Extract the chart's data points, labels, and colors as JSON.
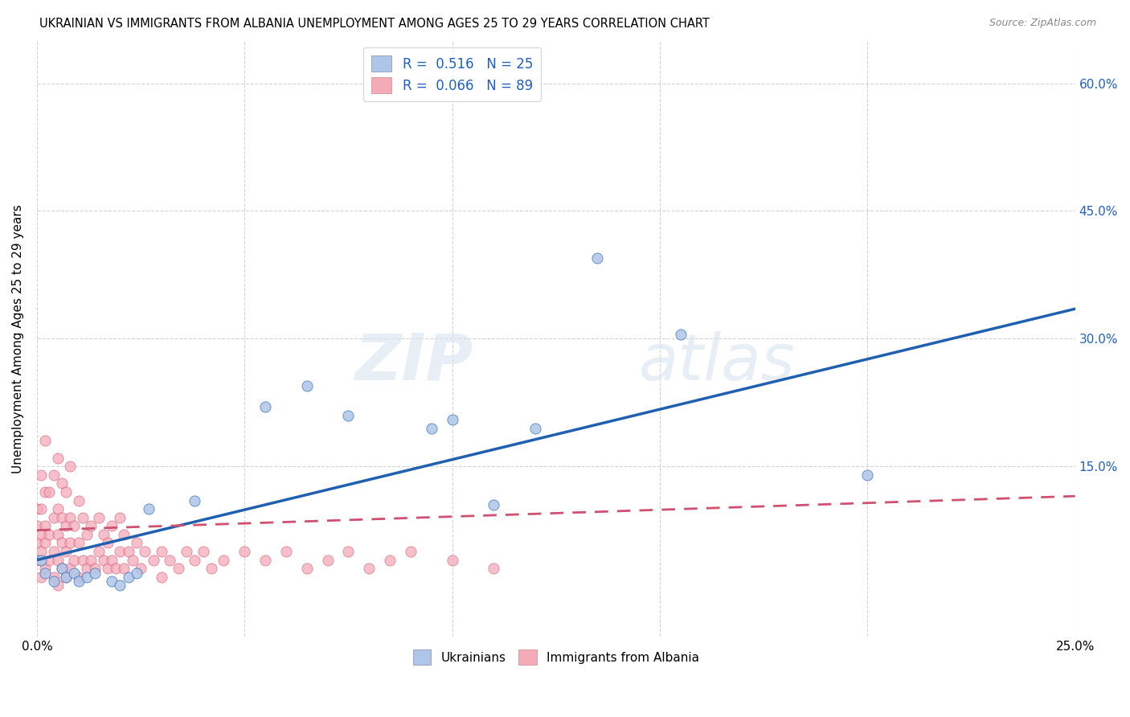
{
  "title": "UKRAINIAN VS IMMIGRANTS FROM ALBANIA UNEMPLOYMENT AMONG AGES 25 TO 29 YEARS CORRELATION CHART",
  "source": "Source: ZipAtlas.com",
  "ylabel": "Unemployment Among Ages 25 to 29 years",
  "x_min": 0.0,
  "x_max": 0.25,
  "y_min": -0.05,
  "y_max": 0.65,
  "y_ticks": [
    0.15,
    0.3,
    0.45,
    0.6
  ],
  "y_tick_labels": [
    "15.0%",
    "30.0%",
    "45.0%",
    "60.0%"
  ],
  "watermark_zip": "ZIP",
  "watermark_atlas": "atlas",
  "ukrainian_color": "#aec6e8",
  "albanian_color": "#f5aab8",
  "ukrainian_R": 0.516,
  "ukrainian_N": 25,
  "albanian_R": 0.066,
  "albanian_N": 89,
  "ukrainian_line_color": "#2060b0",
  "albanian_line_color": "#d05070",
  "legend_blue_label": "Ukrainians",
  "legend_pink_label": "Immigrants from Albania",
  "legend_text_color": "#2060c0",
  "uk_trend_x0": 0.0,
  "uk_trend_y0": 0.04,
  "uk_trend_x1": 0.25,
  "uk_trend_y1": 0.335,
  "alb_trend_x0": 0.0,
  "alb_trend_y0": 0.075,
  "alb_trend_x1": 0.25,
  "alb_trend_y1": 0.115,
  "uk_x": [
    0.001,
    0.002,
    0.004,
    0.006,
    0.007,
    0.009,
    0.01,
    0.012,
    0.014,
    0.018,
    0.02,
    0.022,
    0.024,
    0.027,
    0.038,
    0.055,
    0.065,
    0.075,
    0.095,
    0.1,
    0.11,
    0.12,
    0.135,
    0.155,
    0.2
  ],
  "uk_y": [
    0.04,
    0.025,
    0.015,
    0.03,
    0.02,
    0.025,
    0.015,
    0.02,
    0.025,
    0.015,
    0.01,
    0.02,
    0.025,
    0.1,
    0.11,
    0.22,
    0.245,
    0.21,
    0.195,
    0.205,
    0.105,
    0.195,
    0.395,
    0.305,
    0.14
  ],
  "alb_x": [
    0.0,
    0.0,
    0.0,
    0.0,
    0.001,
    0.001,
    0.001,
    0.001,
    0.001,
    0.002,
    0.002,
    0.002,
    0.002,
    0.002,
    0.003,
    0.003,
    0.003,
    0.004,
    0.004,
    0.004,
    0.004,
    0.005,
    0.005,
    0.005,
    0.005,
    0.005,
    0.006,
    0.006,
    0.006,
    0.006,
    0.007,
    0.007,
    0.007,
    0.007,
    0.008,
    0.008,
    0.008,
    0.008,
    0.009,
    0.009,
    0.01,
    0.01,
    0.01,
    0.011,
    0.011,
    0.012,
    0.012,
    0.013,
    0.013,
    0.014,
    0.015,
    0.015,
    0.016,
    0.016,
    0.017,
    0.017,
    0.018,
    0.018,
    0.019,
    0.02,
    0.02,
    0.021,
    0.021,
    0.022,
    0.023,
    0.024,
    0.025,
    0.026,
    0.028,
    0.03,
    0.03,
    0.032,
    0.034,
    0.036,
    0.038,
    0.04,
    0.042,
    0.045,
    0.05,
    0.055,
    0.06,
    0.065,
    0.07,
    0.075,
    0.08,
    0.085,
    0.09,
    0.1,
    0.11
  ],
  "alb_y": [
    0.04,
    0.06,
    0.08,
    0.1,
    0.02,
    0.05,
    0.07,
    0.1,
    0.14,
    0.03,
    0.06,
    0.08,
    0.12,
    0.18,
    0.04,
    0.07,
    0.12,
    0.02,
    0.05,
    0.09,
    0.14,
    0.01,
    0.04,
    0.07,
    0.1,
    0.16,
    0.03,
    0.06,
    0.09,
    0.13,
    0.02,
    0.05,
    0.08,
    0.12,
    0.03,
    0.06,
    0.09,
    0.15,
    0.04,
    0.08,
    0.02,
    0.06,
    0.11,
    0.04,
    0.09,
    0.03,
    0.07,
    0.04,
    0.08,
    0.03,
    0.05,
    0.09,
    0.04,
    0.07,
    0.03,
    0.06,
    0.04,
    0.08,
    0.03,
    0.05,
    0.09,
    0.03,
    0.07,
    0.05,
    0.04,
    0.06,
    0.03,
    0.05,
    0.04,
    0.05,
    0.02,
    0.04,
    0.03,
    0.05,
    0.04,
    0.05,
    0.03,
    0.04,
    0.05,
    0.04,
    0.05,
    0.03,
    0.04,
    0.05,
    0.03,
    0.04,
    0.05,
    0.04,
    0.03
  ]
}
